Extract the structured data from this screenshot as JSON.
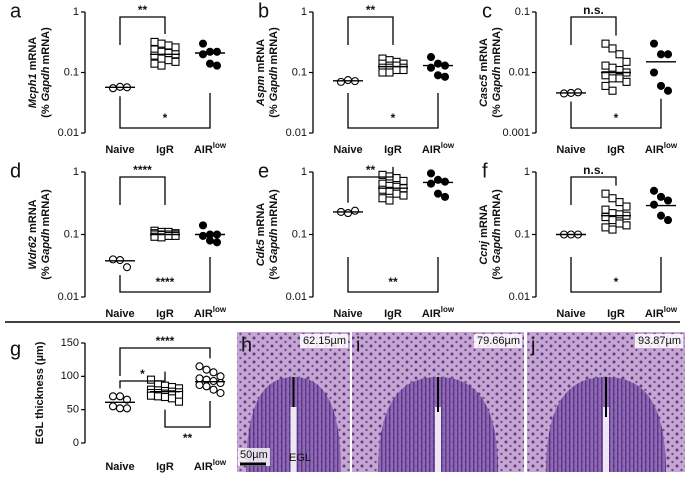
{
  "chart_data": [
    {
      "type": "scatter",
      "letter": "a",
      "log_y": true,
      "ylabel": {
        "gene": "Mcph1",
        "text": "mRNA"
      },
      "ylabel2": {
        "open": "(%",
        "gene": "Gapdh",
        "text": "mRNA)"
      },
      "categories": [
        "Naive",
        "IgR",
        "AIR"
      ],
      "category_sup": "low",
      "ylim": [
        0.01,
        1
      ],
      "yticks": [
        0.01,
        0.1,
        1
      ],
      "series": [
        {
          "marker": "circle-open",
          "values": [
            0.055,
            0.058,
            0.057
          ],
          "mean": 0.057
        },
        {
          "marker": "square-open",
          "values": [
            0.32,
            0.3,
            0.28,
            0.26,
            0.24,
            0.22,
            0.21,
            0.2,
            0.19,
            0.17,
            0.16,
            0.15,
            0.14,
            0.13
          ],
          "mean": 0.2
        },
        {
          "marker": "circle-filled",
          "values": [
            0.3,
            0.22,
            0.22,
            0.2,
            0.14,
            0.13
          ],
          "mean": 0.21
        }
      ],
      "comparisons": [
        {
          "label": "**",
          "between": [
            "Naive",
            "IgR"
          ],
          "side": "top"
        },
        {
          "label": "*",
          "between": [
            "Naive",
            "AIR"
          ],
          "side": "bottom"
        }
      ]
    },
    {
      "type": "scatter",
      "letter": "b",
      "log_y": true,
      "ylabel": {
        "gene": "Aspm",
        "text": "mRNA"
      },
      "ylabel2": {
        "open": "(%",
        "gene": "Gapdh",
        "text": "mRNA)"
      },
      "categories": [
        "Naive",
        "IgR",
        "AIR"
      ],
      "category_sup": "low",
      "ylim": [
        0.01,
        1
      ],
      "yticks": [
        0.01,
        0.1,
        1
      ],
      "series": [
        {
          "marker": "circle-open",
          "values": [
            0.07,
            0.075,
            0.072
          ],
          "mean": 0.073
        },
        {
          "marker": "square-open",
          "values": [
            0.17,
            0.16,
            0.15,
            0.14,
            0.14,
            0.13,
            0.13,
            0.12,
            0.12,
            0.12,
            0.11,
            0.11,
            0.1,
            0.1
          ],
          "mean": 0.125
        },
        {
          "marker": "circle-filled",
          "values": [
            0.18,
            0.14,
            0.13,
            0.12,
            0.09,
            0.085
          ],
          "mean": 0.13
        }
      ],
      "comparisons": [
        {
          "label": "**",
          "between": [
            "Naive",
            "IgR"
          ],
          "side": "top"
        },
        {
          "label": "*",
          "between": [
            "Naive",
            "AIR"
          ],
          "side": "bottom"
        }
      ]
    },
    {
      "type": "scatter",
      "letter": "c",
      "log_y": true,
      "ylabel": {
        "gene": "Casc5",
        "text": "mRNA"
      },
      "ylabel2": {
        "open": "(%",
        "gene": "Gapdh",
        "text": "mRNA)"
      },
      "categories": [
        "Naive",
        "IgR",
        "AIR"
      ],
      "category_sup": "low",
      "ylim": [
        0.001,
        0.1
      ],
      "yticks": [
        0.001,
        0.01,
        0.1
      ],
      "series": [
        {
          "marker": "circle-open",
          "values": [
            0.0045,
            0.0046,
            0.0047
          ],
          "mean": 0.0046
        },
        {
          "marker": "square-open",
          "values": [
            0.03,
            0.025,
            0.02,
            0.015,
            0.013,
            0.012,
            0.011,
            0.01,
            0.009,
            0.008,
            0.008,
            0.007,
            0.006,
            0.005
          ],
          "mean": 0.01
        },
        {
          "marker": "circle-filled",
          "values": [
            0.03,
            0.02,
            0.02,
            0.01,
            0.006,
            0.005
          ],
          "mean": 0.015
        }
      ],
      "comparisons": [
        {
          "label": "n.s.",
          "between": [
            "Naive",
            "IgR"
          ],
          "side": "top"
        },
        {
          "label": "*",
          "between": [
            "Naive",
            "AIR"
          ],
          "side": "bottom"
        }
      ]
    },
    {
      "type": "scatter",
      "letter": "d",
      "log_y": true,
      "ylabel": {
        "gene": "Wdr62",
        "text": "mRNA"
      },
      "ylabel2": {
        "open": "(%",
        "gene": "Gapdh",
        "text": "mRNA)"
      },
      "categories": [
        "Naive",
        "IgR",
        "AIR"
      ],
      "category_sup": "low",
      "ylim": [
        0.01,
        1
      ],
      "yticks": [
        0.01,
        0.1,
        1
      ],
      "series": [
        {
          "marker": "circle-open",
          "values": [
            0.04,
            0.039,
            0.03
          ],
          "mean": 0.038
        },
        {
          "marker": "square-open",
          "values": [
            0.115,
            0.11,
            0.11,
            0.105,
            0.105,
            0.1,
            0.1,
            0.1,
            0.1,
            0.098,
            0.095,
            0.095,
            0.092,
            0.09
          ],
          "mean": 0.1
        },
        {
          "marker": "circle-filled",
          "values": [
            0.14,
            0.1,
            0.1,
            0.095,
            0.08,
            0.075
          ],
          "mean": 0.1
        }
      ],
      "comparisons": [
        {
          "label": "****",
          "between": [
            "Naive",
            "IgR"
          ],
          "side": "top"
        },
        {
          "label": "****",
          "between": [
            "Naive",
            "AIR"
          ],
          "side": "bottom"
        }
      ]
    },
    {
      "type": "scatter",
      "letter": "e",
      "log_y": true,
      "ylabel": {
        "gene": "Cdk5",
        "text": "mRNA"
      },
      "ylabel2": {
        "open": "(%",
        "gene": "Gapdh",
        "text": "mRNA)"
      },
      "categories": [
        "Naive",
        "IgR",
        "AIR"
      ],
      "category_sup": "low",
      "ylim": [
        0.01,
        1
      ],
      "yticks": [
        0.01,
        0.1,
        1
      ],
      "series": [
        {
          "marker": "circle-open",
          "values": [
            0.23,
            0.22,
            0.24
          ],
          "mean": 0.23
        },
        {
          "marker": "square-open",
          "values": [
            0.9,
            0.85,
            0.8,
            0.72,
            0.65,
            0.6,
            0.58,
            0.55,
            0.52,
            0.5,
            0.45,
            0.42,
            0.38,
            0.35
          ],
          "mean": 0.55
        },
        {
          "marker": "circle-filled",
          "values": [
            0.95,
            0.75,
            0.7,
            0.65,
            0.45,
            0.4
          ],
          "mean": 0.68
        }
      ],
      "comparisons": [
        {
          "label": "**",
          "between": [
            "Naive",
            "IgR"
          ],
          "side": "top"
        },
        {
          "label": "**",
          "between": [
            "Naive",
            "AIR"
          ],
          "side": "bottom"
        }
      ]
    },
    {
      "type": "scatter",
      "letter": "f",
      "log_y": true,
      "ylabel": {
        "gene": "Ccnj",
        "text": "mRNA"
      },
      "ylabel2": {
        "open": "(%",
        "gene": "Gapdh",
        "text": "mRNA)"
      },
      "categories": [
        "Naive",
        "IgR",
        "AIR"
      ],
      "category_sup": "low",
      "ylim": [
        0.01,
        1
      ],
      "yticks": [
        0.01,
        0.1,
        1
      ],
      "series": [
        {
          "marker": "circle-open",
          "values": [
            0.1,
            0.1,
            0.1
          ],
          "mean": 0.1
        },
        {
          "marker": "square-open",
          "values": [
            0.45,
            0.38,
            0.33,
            0.28,
            0.25,
            0.22,
            0.21,
            0.2,
            0.19,
            0.17,
            0.15,
            0.14,
            0.13,
            0.12
          ],
          "mean": 0.2
        },
        {
          "marker": "circle-filled",
          "values": [
            0.5,
            0.4,
            0.35,
            0.3,
            0.2,
            0.17
          ],
          "mean": 0.29
        }
      ],
      "comparisons": [
        {
          "label": "n.s.",
          "between": [
            "Naive",
            "IgR"
          ],
          "side": "top"
        },
        {
          "label": "*",
          "between": [
            "Naive",
            "AIR"
          ],
          "side": "bottom"
        }
      ]
    },
    {
      "type": "scatter",
      "letter": "g",
      "log_y": false,
      "ylabel": "EGL thickness (µm)",
      "categories": [
        "Naive",
        "IgR",
        "AIR"
      ],
      "category_sup": "low",
      "ylim": [
        0,
        150
      ],
      "yticks": [
        0,
        50,
        100,
        150
      ],
      "series": [
        {
          "marker": "circle-open",
          "values": [
            70,
            70,
            65,
            55,
            52,
            52
          ],
          "mean": 61
        },
        {
          "marker": "square-open",
          "values": [
            95,
            88,
            86,
            84,
            82,
            80,
            79,
            78,
            77,
            76,
            75,
            75,
            74,
            73,
            72,
            71,
            70,
            69,
            67,
            62
          ],
          "mean": 77
        },
        {
          "marker": "circle-open",
          "values": [
            115,
            110,
            106,
            100,
            97,
            95,
            93,
            90,
            87,
            85,
            80,
            75
          ],
          "mean": 92
        }
      ],
      "comparisons": [
        {
          "label": "*",
          "between": [
            "Naive",
            "IgR"
          ],
          "side": "top"
        },
        {
          "label": "****",
          "between": [
            "Naive",
            "AIR"
          ],
          "side": "top"
        },
        {
          "label": "**",
          "between": [
            "IgR",
            "AIR"
          ],
          "side": "bottom"
        }
      ]
    }
  ],
  "images": [
    {
      "letter": "h",
      "measure": "62.15µm"
    },
    {
      "letter": "i",
      "measure": "79.66µm"
    },
    {
      "letter": "j",
      "measure": "93.87µm"
    }
  ],
  "scale_bar": "50µm",
  "region_label": "EGL"
}
